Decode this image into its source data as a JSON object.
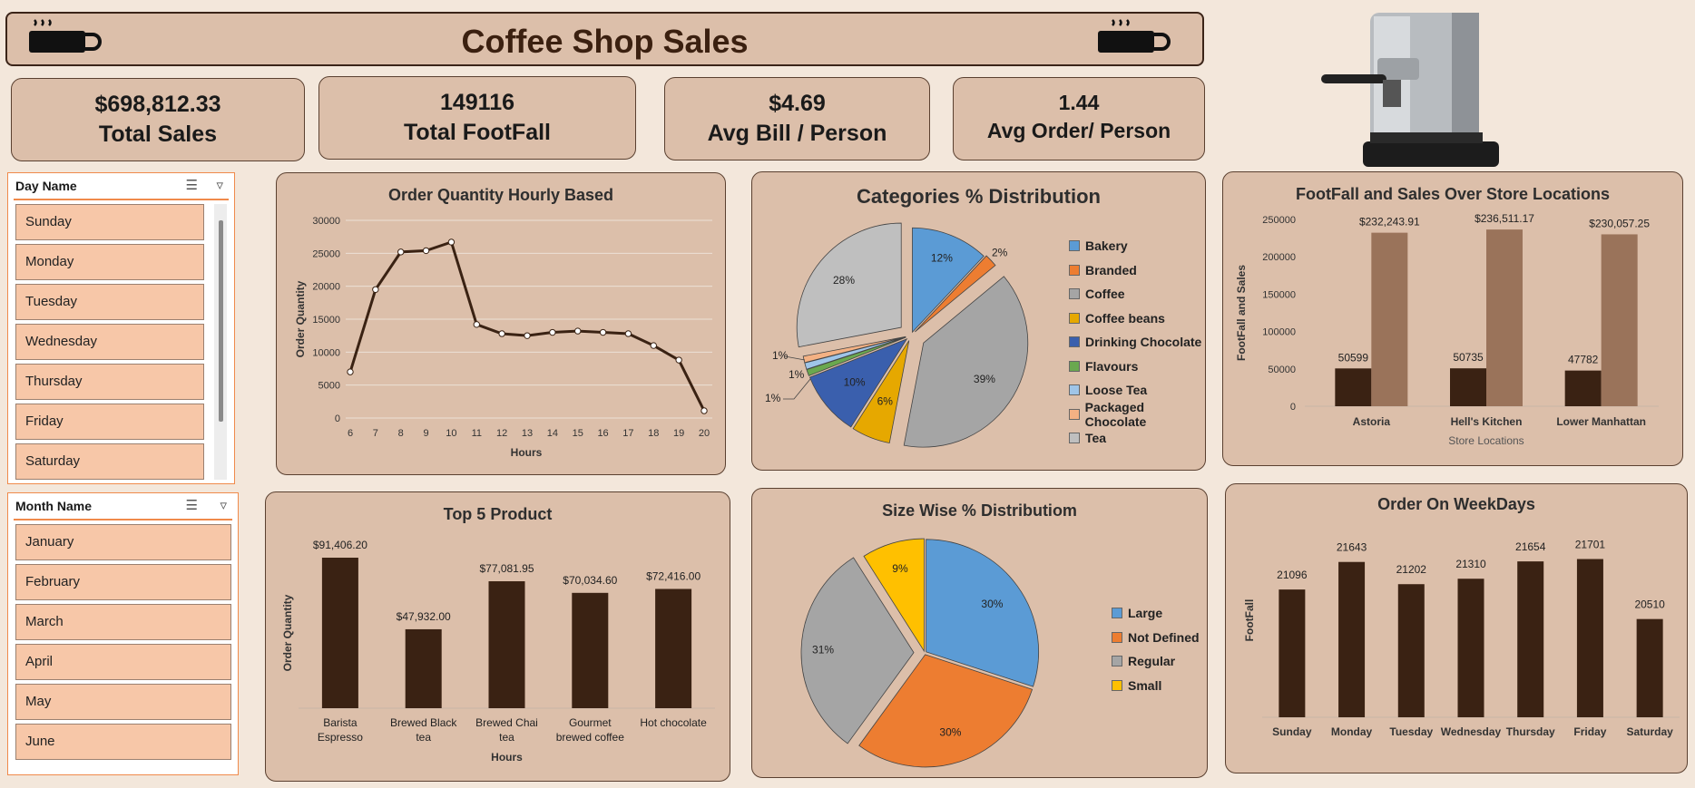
{
  "title": "Coffee Shop Sales",
  "kpis": [
    {
      "value": "$698,812.33",
      "label": "Total Sales"
    },
    {
      "value": "149116",
      "label": "Total FootFall"
    },
    {
      "value": "$4.69",
      "label": "Avg Bill / Person"
    },
    {
      "value": "1.44",
      "label": "Avg Order/ Person"
    }
  ],
  "slicers": {
    "day": {
      "title": "Day Name",
      "items": [
        "Sunday",
        "Monday",
        "Tuesday",
        "Wednesday",
        "Thursday",
        "Friday",
        "Saturday"
      ]
    },
    "month": {
      "title": "Month Name",
      "items": [
        "January",
        "February",
        "March",
        "April",
        "May",
        "June"
      ]
    }
  },
  "colors": {
    "bar_dark": "#3a2213",
    "bar_light": "#9a735a",
    "panel": "#dcbfaa",
    "background": "#f3e7db",
    "slicer_item": "#f7c7a8"
  },
  "icons": [
    "coffee-cup-icon",
    "espresso-machine-image",
    "multi-select-icon",
    "clear-filter-icon"
  ],
  "chart_data": [
    {
      "id": "hourly",
      "type": "line",
      "title": "Order Quantity Hourly Based",
      "xlabel": "Hours",
      "ylabel": "Order Quantity",
      "x": [
        "6",
        "7",
        "8",
        "9",
        "10",
        "11",
        "12",
        "13",
        "14",
        "15",
        "16",
        "17",
        "18",
        "19",
        "20"
      ],
      "values": [
        7000,
        19500,
        25200,
        25400,
        26700,
        14200,
        12800,
        12500,
        13000,
        13200,
        13000,
        12800,
        11000,
        8800,
        1100
      ],
      "ylim": [
        0,
        30000
      ],
      "yticks": [
        "0",
        "5000",
        "10000",
        "15000",
        "20000",
        "25000",
        "30000"
      ],
      "grid": true
    },
    {
      "id": "categories",
      "type": "pie",
      "title": "Categories % Distribution",
      "categories": [
        "Bakery",
        "Branded",
        "Coffee",
        "Coffee beans",
        "Drinking Chocolate",
        "Flavours",
        "Loose Tea",
        "Packaged Chocolate",
        "Tea"
      ],
      "values": [
        12,
        2,
        39,
        6,
        10,
        1,
        1,
        1,
        28
      ],
      "labels": [
        "12%",
        "2%",
        "39%",
        "6%",
        "10%",
        "1%",
        "1%",
        "1%",
        "28%"
      ],
      "colors": [
        "#5b9bd5",
        "#ed7d31",
        "#a5a5a5",
        "#e6a800",
        "#3a5fad",
        "#6aa84f",
        "#9fc5e8",
        "#f4b183",
        "#bfbfbf"
      ],
      "legend": "right"
    },
    {
      "id": "locations",
      "type": "bar",
      "title": "FootFall and Sales Over Store Locations",
      "xlabel": "Store Locations",
      "ylabel": "FootFall and Sales",
      "categories": [
        "Astoria",
        "Hell's Kitchen",
        "Lower Manhattan"
      ],
      "series": [
        {
          "values": [
            50599,
            50735,
            47782
          ],
          "labels": [
            "50599",
            "50735",
            "47782"
          ]
        },
        {
          "values": [
            232243.91,
            236511.17,
            230057.25
          ],
          "labels": [
            "$232,243.91",
            "$236,511.17",
            "$230,057.25"
          ]
        }
      ],
      "ylim": [
        0,
        250000
      ],
      "yticks": [
        "0",
        "50000",
        "100000",
        "150000",
        "200000",
        "250000"
      ]
    },
    {
      "id": "top5",
      "type": "bar",
      "title": "Top 5 Product",
      "xlabel": "Hours",
      "ylabel": "Order Quantity",
      "categories": [
        "Barista Espresso",
        "Brewed Black tea",
        "Brewed Chai tea",
        "Gourmet brewed coffee",
        "Hot chocolate"
      ],
      "values": [
        91406.2,
        47932.0,
        77081.95,
        70034.6,
        72416.0
      ],
      "labels": [
        "$91,406.20",
        "$47,932.00",
        "$77,081.95",
        "$70,034.60",
        "$72,416.00"
      ]
    },
    {
      "id": "size",
      "type": "pie",
      "title": "Size Wise % Distributiom",
      "categories": [
        "Large",
        "Not Defined",
        "Regular",
        "Small"
      ],
      "values": [
        30,
        30,
        31,
        9
      ],
      "labels": [
        "30%",
        "30%",
        "31%",
        "9%"
      ],
      "colors": [
        "#5b9bd5",
        "#ed7d31",
        "#a5a5a5",
        "#ffc000"
      ],
      "legend": "right"
    },
    {
      "id": "weekday",
      "type": "bar",
      "title": "Order On WeekDays",
      "ylabel": "FootFall",
      "categories": [
        "Sunday",
        "Monday",
        "Tuesday",
        "Wednesday",
        "Thursday",
        "Friday",
        "Saturday"
      ],
      "values": [
        21096,
        21643,
        21202,
        21310,
        21654,
        21701,
        20510
      ],
      "labels": [
        "21096",
        "21643",
        "21202",
        "21310",
        "21654",
        "21701",
        "20510"
      ]
    }
  ]
}
